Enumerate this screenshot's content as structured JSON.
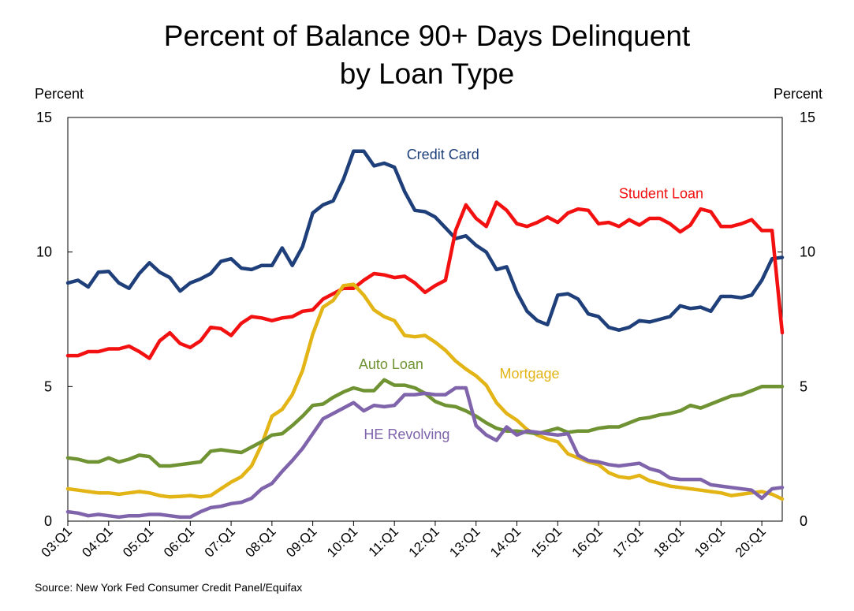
{
  "title_line1": "Percent of Balance 90+ Days Delinquent",
  "title_line2": "by Loan Type",
  "source": "Source: New York Fed Consumer Credit Panel/Equifax",
  "chart_data": {
    "type": "line",
    "title": "Percent of Balance 90+ Days Delinquent by Loan Type",
    "ylabel_left": "Percent",
    "ylabel_right": "Percent",
    "ylim": [
      0,
      15
    ],
    "yticks": [
      "0",
      "5",
      "10",
      "15"
    ],
    "x_start_index": 0,
    "x_end_index": 70,
    "xticks": [
      {
        "label": "03:Q1",
        "index": 0
      },
      {
        "label": "04:Q1",
        "index": 4
      },
      {
        "label": "05:Q1",
        "index": 8
      },
      {
        "label": "06:Q1",
        "index": 12
      },
      {
        "label": "07:Q1",
        "index": 16
      },
      {
        "label": "08:Q1",
        "index": 20
      },
      {
        "label": "09:Q1",
        "index": 24
      },
      {
        "label": "10:Q1",
        "index": 28
      },
      {
        "label": "11:Q1",
        "index": 32
      },
      {
        "label": "12:Q1",
        "index": 36
      },
      {
        "label": "13:Q1",
        "index": 40
      },
      {
        "label": "14:Q1",
        "index": 44
      },
      {
        "label": "15:Q1",
        "index": 48
      },
      {
        "label": "16:Q1",
        "index": 52
      },
      {
        "label": "17:Q1",
        "index": 56
      },
      {
        "label": "18:Q1",
        "index": 60
      },
      {
        "label": "19:Q1",
        "index": 64
      },
      {
        "label": "20:Q1",
        "index": 68
      }
    ],
    "grid": false,
    "series": [
      {
        "name": "Credit Card",
        "color": "#1f3f7a",
        "values": [
          8.85,
          8.95,
          8.7,
          9.25,
          9.28,
          8.85,
          8.65,
          9.2,
          9.6,
          9.25,
          9.05,
          8.55,
          8.85,
          9.0,
          9.2,
          9.65,
          9.75,
          9.4,
          9.35,
          9.5,
          9.5,
          10.15,
          9.5,
          10.2,
          11.45,
          11.75,
          11.9,
          12.7,
          13.75,
          13.75,
          13.2,
          13.3,
          13.15,
          12.25,
          11.55,
          11.5,
          11.3,
          10.9,
          10.5,
          10.6,
          10.25,
          10.0,
          9.35,
          9.45,
          8.5,
          7.8,
          7.45,
          7.3,
          8.4,
          8.45,
          8.25,
          7.7,
          7.6,
          7.2,
          7.1,
          7.2,
          7.45,
          7.4,
          7.5,
          7.6,
          8.0,
          7.9,
          7.95,
          7.8,
          8.35,
          8.35,
          8.3,
          8.4,
          8.95,
          9.75,
          9.8
        ]
      },
      {
        "name": "Student Loan",
        "color": "#f21010",
        "values": [
          6.15,
          6.15,
          6.3,
          6.3,
          6.4,
          6.4,
          6.5,
          6.3,
          6.05,
          6.7,
          7.0,
          6.6,
          6.45,
          6.7,
          7.2,
          7.15,
          6.9,
          7.35,
          7.6,
          7.55,
          7.45,
          7.55,
          7.6,
          7.8,
          7.85,
          8.25,
          8.45,
          8.65,
          8.65,
          8.95,
          9.2,
          9.15,
          9.05,
          9.1,
          8.85,
          8.5,
          8.75,
          8.95,
          10.8,
          11.75,
          11.25,
          10.95,
          11.85,
          11.55,
          11.05,
          10.95,
          11.1,
          11.3,
          11.1,
          11.45,
          11.6,
          11.55,
          11.05,
          11.1,
          10.95,
          11.2,
          11.0,
          11.25,
          11.25,
          11.05,
          10.75,
          11.0,
          11.6,
          11.5,
          10.95,
          10.95,
          11.05,
          11.2,
          10.8,
          10.8,
          7.0
        ]
      },
      {
        "name": "Mortgage",
        "color": "#e3b416",
        "values": [
          1.2,
          1.15,
          1.1,
          1.05,
          1.05,
          1.0,
          1.05,
          1.1,
          1.05,
          0.95,
          0.9,
          0.92,
          0.95,
          0.9,
          0.95,
          1.2,
          1.45,
          1.65,
          2.05,
          2.85,
          3.9,
          4.15,
          4.7,
          5.6,
          6.95,
          7.95,
          8.2,
          8.75,
          8.8,
          8.4,
          7.85,
          7.6,
          7.45,
          6.9,
          6.85,
          6.9,
          6.65,
          6.35,
          5.95,
          5.65,
          5.4,
          5.05,
          4.4,
          4.0,
          3.75,
          3.4,
          3.2,
          3.05,
          2.95,
          2.5,
          2.35,
          2.2,
          2.1,
          1.8,
          1.65,
          1.6,
          1.7,
          1.5,
          1.4,
          1.3,
          1.25,
          1.2,
          1.15,
          1.1,
          1.05,
          0.95,
          1.0,
          1.05,
          1.1,
          1.0,
          0.82
        ]
      },
      {
        "name": "Auto Loan",
        "color": "#6f9233",
        "values": [
          2.35,
          2.3,
          2.2,
          2.2,
          2.35,
          2.2,
          2.3,
          2.45,
          2.4,
          2.05,
          2.05,
          2.1,
          2.15,
          2.2,
          2.6,
          2.65,
          2.6,
          2.55,
          2.75,
          2.95,
          3.2,
          3.25,
          3.55,
          3.9,
          4.3,
          4.35,
          4.6,
          4.8,
          4.95,
          4.85,
          4.85,
          5.25,
          5.05,
          5.05,
          4.95,
          4.75,
          4.45,
          4.3,
          4.25,
          4.1,
          3.9,
          3.65,
          3.45,
          3.35,
          3.35,
          3.3,
          3.25,
          3.35,
          3.45,
          3.3,
          3.35,
          3.35,
          3.45,
          3.5,
          3.5,
          3.65,
          3.8,
          3.85,
          3.95,
          4.0,
          4.1,
          4.3,
          4.2,
          4.35,
          4.5,
          4.65,
          4.7,
          4.85,
          5.0,
          5.0,
          5.0
        ]
      },
      {
        "name": "HE Revolving",
        "color": "#7f64ac",
        "values": [
          0.35,
          0.3,
          0.2,
          0.25,
          0.2,
          0.15,
          0.2,
          0.2,
          0.25,
          0.25,
          0.2,
          0.15,
          0.15,
          0.35,
          0.5,
          0.55,
          0.65,
          0.7,
          0.85,
          1.2,
          1.4,
          1.85,
          2.25,
          2.7,
          3.25,
          3.8,
          4.0,
          4.2,
          4.4,
          4.1,
          4.3,
          4.25,
          4.3,
          4.7,
          4.7,
          4.75,
          4.7,
          4.7,
          4.95,
          4.95,
          3.55,
          3.2,
          3.0,
          3.5,
          3.2,
          3.35,
          3.3,
          3.25,
          3.2,
          3.25,
          2.45,
          2.25,
          2.2,
          2.1,
          2.05,
          2.1,
          2.15,
          1.95,
          1.85,
          1.6,
          1.55,
          1.55,
          1.55,
          1.35,
          1.3,
          1.25,
          1.2,
          1.15,
          0.85,
          1.2,
          1.25
        ]
      }
    ]
  }
}
